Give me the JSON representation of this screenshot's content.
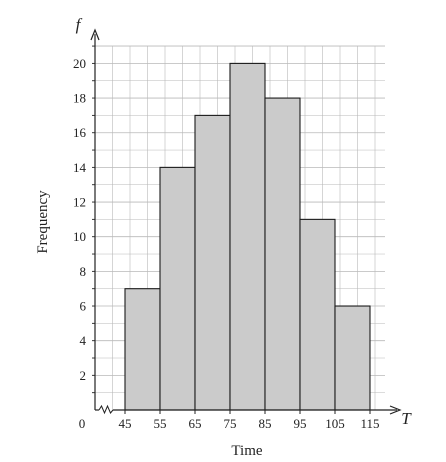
{
  "chart_data": {
    "type": "bar",
    "style": "histogram",
    "bins": [
      {
        "from": 45,
        "to": 55,
        "frequency": 7
      },
      {
        "from": 55,
        "to": 65,
        "frequency": 14
      },
      {
        "from": 65,
        "to": 75,
        "frequency": 17
      },
      {
        "from": 75,
        "to": 85,
        "frequency": 20
      },
      {
        "from": 85,
        "to": 95,
        "frequency": 18
      },
      {
        "from": 95,
        "to": 105,
        "frequency": 11
      },
      {
        "from": 105,
        "to": 115,
        "frequency": 6
      }
    ],
    "xlabel": "Time",
    "ylabel": "Frequency",
    "x_axis_symbol": "T",
    "y_axis_symbol": "f",
    "origin_label": "0",
    "x_ticks": [
      "45",
      "55",
      "65",
      "75",
      "85",
      "95",
      "105",
      "115"
    ],
    "y_ticks": [
      "2",
      "4",
      "6",
      "8",
      "10",
      "12",
      "14",
      "16",
      "18",
      "20"
    ],
    "xlim": [
      45,
      125
    ],
    "ylim": [
      0,
      21
    ],
    "x_axis_break": true,
    "grid": true,
    "colors": {
      "bar_fill": "#cbcbcb",
      "bar_stroke": "#1a1a1a",
      "grid": "#b9b9b9",
      "axis": "#222222"
    }
  }
}
